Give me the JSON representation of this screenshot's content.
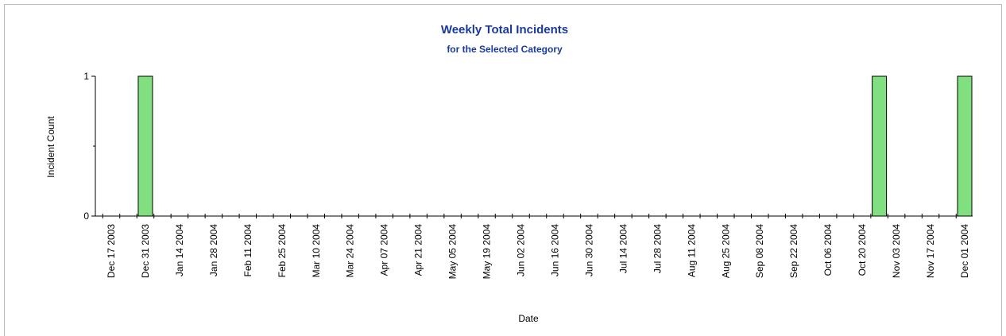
{
  "chart_data": {
    "type": "bar",
    "title": "Weekly Total Incidents",
    "subtitle": "for the Selected Category",
    "x_label": "Date",
    "y_label": "Incident Count",
    "categories": [
      "Dec 17 2003",
      null,
      "Dec 31 2003",
      null,
      "Jan 14 2004",
      null,
      "Jan 28 2004",
      null,
      "Feb 11 2004",
      null,
      "Feb 25 2004",
      null,
      "Mar 10 2004",
      null,
      "Mar 24 2004",
      null,
      "Apr 07 2004",
      null,
      "Apr 21 2004",
      null,
      "May 05 2004",
      null,
      "May 19 2004",
      null,
      "Jun 02 2004",
      null,
      "Jun 16 2004",
      null,
      "Jun 30 2004",
      null,
      "Jul 14 2004",
      null,
      "Jul 28 2004",
      null,
      "Aug 11 2004",
      null,
      "Aug 25 2004",
      null,
      "Sep 08 2004",
      null,
      "Sep 22 2004",
      null,
      "Oct 06 2004",
      null,
      "Oct 20 2004",
      null,
      "Nov 03 2004",
      null,
      "Nov 17 2004",
      null,
      "Dec 01 2004"
    ],
    "values": [
      0,
      0,
      1,
      0,
      0,
      0,
      0,
      0,
      0,
      0,
      0,
      0,
      0,
      0,
      0,
      0,
      0,
      0,
      0,
      0,
      0,
      0,
      0,
      0,
      0,
      0,
      0,
      0,
      0,
      0,
      0,
      0,
      0,
      0,
      0,
      0,
      0,
      0,
      0,
      0,
      0,
      0,
      0,
      0,
      0,
      1,
      0,
      0,
      0,
      0,
      1
    ],
    "color": "#80e080",
    "ylim": [
      0,
      1
    ],
    "yticks": [
      0,
      1
    ],
    "grid": false
  }
}
